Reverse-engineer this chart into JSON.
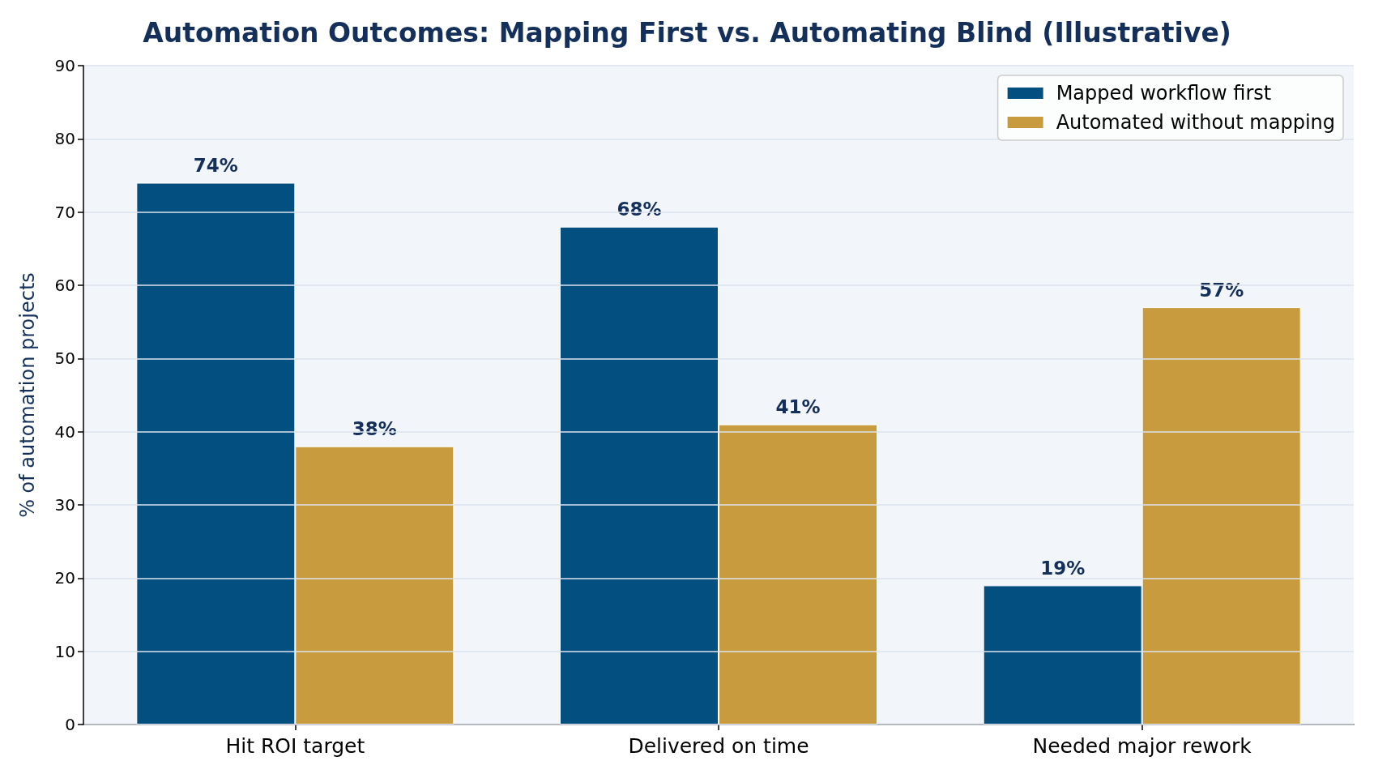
{
  "chart_data": {
    "type": "bar",
    "title": "Automation Outcomes: Mapping First vs. Automating Blind (Illustrative)",
    "ylabel": "% of automation projects",
    "categories": [
      "Hit ROI target",
      "Delivered on time",
      "Needed major rework"
    ],
    "series": [
      {
        "name": "Mapped workflow first",
        "color": "#034f80",
        "values": [
          74,
          68,
          19
        ],
        "value_labels": [
          "74%",
          "68%",
          "19%"
        ]
      },
      {
        "name": "Automated without mapping",
        "color": "#c89c3e",
        "values": [
          38,
          41,
          57
        ],
        "value_labels": [
          "38%",
          "41%",
          "57%"
        ]
      }
    ],
    "ylim": [
      0,
      90
    ],
    "yticks": [
      0,
      10,
      20,
      30,
      40,
      50,
      60,
      70,
      80,
      90
    ],
    "grid": "y",
    "legend": "top right"
  }
}
